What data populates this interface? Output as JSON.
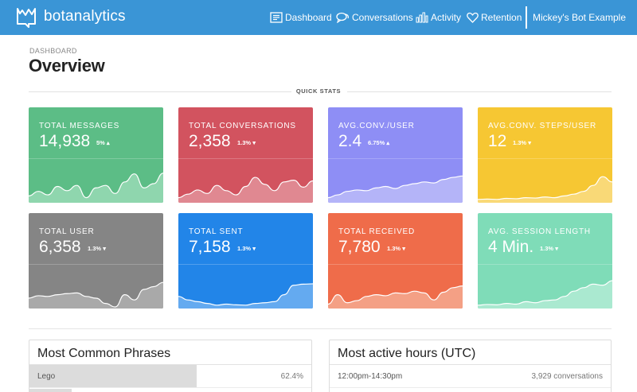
{
  "app": {
    "name": "botanalytics",
    "account": "Mickey's Bot Example"
  },
  "nav": [
    {
      "label": "Dashboard",
      "icon": "dashboard-icon"
    },
    {
      "label": "Conversations",
      "icon": "chat-bubbles-icon"
    },
    {
      "label": "Activity",
      "icon": "bar-chart-icon"
    },
    {
      "label": "Retention",
      "icon": "heart-icon"
    }
  ],
  "header": {
    "breadcrumb": "DASHBOARD",
    "title": "Overview"
  },
  "quick_stats": {
    "label": "QUICK STATS",
    "cards": [
      {
        "label": "TOTAL MESSAGES",
        "value": "14,938",
        "delta": "5%",
        "trend": "up",
        "color": "#5cbd86",
        "fill": "#8fd6ae",
        "series": [
          0.15,
          0.28,
          0.18,
          0.42,
          0.3,
          0.45,
          0.1,
          0.38,
          0.45,
          0.22,
          0.55,
          0.78,
          0.38,
          0.5,
          0.8
        ]
      },
      {
        "label": "TOTAL CONVERSATIONS",
        "value": "2,358",
        "delta": "1.3%",
        "trend": "down",
        "color": "#d2535f",
        "fill": "#e08891",
        "series": [
          0.1,
          0.2,
          0.32,
          0.22,
          0.45,
          0.3,
          0.18,
          0.42,
          0.68,
          0.48,
          0.3,
          0.55,
          0.6,
          0.4,
          0.58
        ]
      },
      {
        "label": "AVG.CONV./USER",
        "value": "2.4",
        "delta": "6.75%",
        "trend": "up",
        "color": "#8e8ef5",
        "fill": "#b4b4f8",
        "series": [
          0.1,
          0.18,
          0.28,
          0.32,
          0.3,
          0.38,
          0.42,
          0.36,
          0.45,
          0.5,
          0.55,
          0.52,
          0.62,
          0.68,
          0.72
        ]
      },
      {
        "label": "AVG.CONV. STEPS/USER",
        "value": "12",
        "delta": "1.3%",
        "trend": "down",
        "color": "#f6c733",
        "fill": "#f9d977",
        "series": [
          0.05,
          0.06,
          0.05,
          0.08,
          0.07,
          0.1,
          0.09,
          0.12,
          0.1,
          0.15,
          0.2,
          0.28,
          0.45,
          0.7,
          0.55
        ]
      },
      {
        "label": "TOTAL USER",
        "value": "6,358",
        "delta": "1.3%",
        "trend": "down",
        "color": "#858585",
        "fill": "#a9a9a9",
        "series": [
          0.25,
          0.32,
          0.3,
          0.35,
          0.38,
          0.4,
          0.3,
          0.25,
          0.1,
          0.0,
          0.35,
          0.2,
          0.5,
          0.58,
          0.7
        ]
      },
      {
        "label": "TOTAL SENT",
        "value": "7,158",
        "delta": "1.3%",
        "trend": "down",
        "color": "#2285e8",
        "fill": "#64aaf0",
        "series": [
          0.3,
          0.2,
          0.15,
          0.1,
          0.05,
          0.08,
          0.06,
          0.05,
          0.1,
          0.12,
          0.15,
          0.35,
          0.62,
          0.65,
          0.66
        ]
      },
      {
        "label": "TOTAL RECEIVED",
        "value": "7,780",
        "delta": "1.3%",
        "trend": "down",
        "color": "#ef6c4a",
        "fill": "#f4a085",
        "series": [
          0.08,
          0.35,
          0.12,
          0.18,
          0.3,
          0.35,
          0.32,
          0.4,
          0.38,
          0.45,
          0.4,
          0.2,
          0.42,
          0.55,
          0.6
        ]
      },
      {
        "label": "AVG. SESSION LENGTH",
        "value": "4 Min.",
        "delta": "1.3%",
        "trend": "down",
        "color": "#7fdcb8",
        "fill": "#aae9d0",
        "series": [
          0.05,
          0.07,
          0.06,
          0.1,
          0.08,
          0.15,
          0.12,
          0.18,
          0.2,
          0.3,
          0.45,
          0.55,
          0.65,
          0.62,
          0.75
        ]
      }
    ]
  },
  "phrases": {
    "title": "Most Common Phrases",
    "rows": [
      {
        "phrase": "Lego",
        "percent": "62.4%",
        "share": 0.62
      }
    ],
    "next_share": 0.15
  },
  "active_hours": {
    "title": "Most active hours (UTC)",
    "rows": [
      {
        "range": "12:00pm-14:30pm",
        "count": "3,929 conversations"
      }
    ]
  }
}
